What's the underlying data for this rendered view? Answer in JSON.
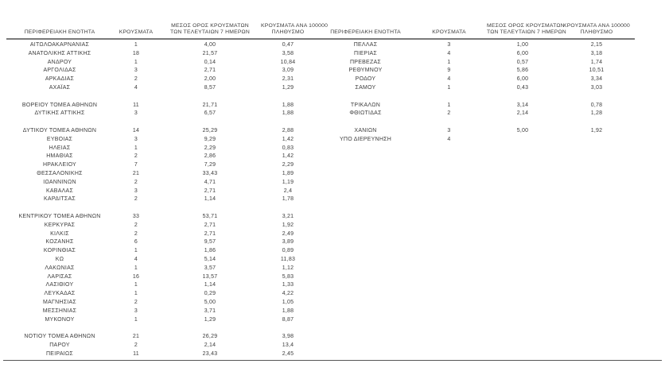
{
  "header": {
    "col_region": "ΠΕΡΙΦΕΡΕΙΑΚΗ ΕΝΟΤΗΤΑ",
    "col_cases": "ΚΡΟΥΣΜΑΤΑ",
    "col_avg7_line1": "ΜΕΣΟΣ ΟΡΟΣ ΚΡΟΥΣΜΑΤΩΝ",
    "col_avg7_line2": "ΤΩΝ ΤΕΛΕΥΤΑΙΩΝ 7 ΗΜΕΡΩΝ",
    "col_per100k_line1": "ΚΡΟΥΣΜΑΤΑ ΑΝΑ 100000",
    "col_per100k_line2": "ΠΛΗΘΥΣΜΟ"
  },
  "colors": {
    "text": "#3d3d3d",
    "header_rule": "#7a7a7a",
    "bottom_rule": "#555555",
    "background": "#ffffff"
  },
  "tables": [
    {
      "rows": [
        [
          "ΑΙΤΩΛΟΑΚΑΡΝΑΝΙΑΣ",
          "1",
          "4,00",
          "0,47"
        ],
        [
          "ΑΝΑΤΟΛΙΚΗΣ ΑΤΤΙΚΗΣ",
          "18",
          "21,57",
          "3,58"
        ],
        [
          "ΑΝΔΡΟΥ",
          "1",
          "0,14",
          "10,84"
        ],
        [
          "ΑΡΓΟΛΙΔΑΣ",
          "3",
          "2,71",
          "3,09"
        ],
        [
          "ΑΡΚΑΔΙΑΣ",
          "2",
          "2,00",
          "2,31"
        ],
        [
          "ΑΧΑΪΑΣ",
          "4",
          "8,57",
          "1,29"
        ],
        null,
        [
          "ΒΟΡΕΙΟΥ ΤΟΜΕΑ ΑΘΗΝΩΝ",
          "11",
          "21,71",
          "1,88"
        ],
        [
          "ΔΥΤΙΚΗΣ ΑΤΤΙΚΗΣ",
          "3",
          "6,57",
          "1,88"
        ],
        null,
        [
          "ΔΥΤΙΚΟΥ ΤΟΜΕΑ ΑΘΗΝΩΝ",
          "14",
          "25,29",
          "2,88"
        ],
        [
          "ΕΥΒΟΙΑΣ",
          "3",
          "9,29",
          "1,42"
        ],
        [
          "ΗΛΕΙΑΣ",
          "1",
          "2,29",
          "0,83"
        ],
        [
          "ΗΜΑΘΙΑΣ",
          "2",
          "2,86",
          "1,42"
        ],
        [
          "ΗΡΑΚΛΕΙΟΥ",
          "7",
          "7,29",
          "2,29"
        ],
        [
          "ΘΕΣΣΑΛΟΝΙΚΗΣ",
          "21",
          "33,43",
          "1,89"
        ],
        [
          "ΙΩΑΝΝΙΝΩΝ",
          "2",
          "4,71",
          "1,19"
        ],
        [
          "ΚΑΒΑΛΑΣ",
          "3",
          "2,71",
          "2,4"
        ],
        [
          "ΚΑΡΔΙΤΣΑΣ",
          "2",
          "1,14",
          "1,78"
        ],
        null,
        [
          "ΚΕΝΤΡΙΚΟΥ ΤΟΜΕΑ ΑΘΗΝΩΝ",
          "33",
          "53,71",
          "3,21"
        ],
        [
          "ΚΕΡΚΥΡΑΣ",
          "2",
          "2,71",
          "1,92"
        ],
        [
          "ΚΙΛΚΙΣ",
          "2",
          "2,71",
          "2,49"
        ],
        [
          "ΚΟΖΑΝΗΣ",
          "6",
          "9,57",
          "3,89"
        ],
        [
          "ΚΟΡΙΝΘΙΑΣ",
          "1",
          "1,86",
          "0,89"
        ],
        [
          "ΚΩ",
          "4",
          "5,14",
          "11,83"
        ],
        [
          "ΛΑΚΩΝΙΑΣ",
          "1",
          "3,57",
          "1,12"
        ],
        [
          "ΛΑΡΙΣΑΣ",
          "16",
          "13,57",
          "5,83"
        ],
        [
          "ΛΑΣΙΘΙΟΥ",
          "1",
          "1,14",
          "1,33"
        ],
        [
          "ΛΕΥΚΑΔΑΣ",
          "1",
          "0,29",
          "4,22"
        ],
        [
          "ΜΑΓΝΗΣΙΑΣ",
          "2",
          "5,00",
          "1,05"
        ],
        [
          "ΜΕΣΣΗΝΙΑΣ",
          "3",
          "3,71",
          "1,88"
        ],
        [
          "ΜΥΚΟΝΟΥ",
          "1",
          "1,29",
          "8,87"
        ],
        null,
        [
          "ΝΟΤΙΟΥ ΤΟΜΕΑ ΑΘΗΝΩΝ",
          "21",
          "26,29",
          "3,98"
        ],
        [
          "ΠΑΡΟΥ",
          "2",
          "2,14",
          "13,4"
        ],
        [
          "ΠΕΙΡΑΙΩΣ",
          "11",
          "23,43",
          "2,45"
        ]
      ]
    },
    {
      "rows": [
        [
          "ΠΕΛΛΑΣ",
          "3",
          "1,00",
          "2,15"
        ],
        [
          "ΠΙΕΡΙΑΣ",
          "4",
          "6,00",
          "3,18"
        ],
        [
          "ΠΡΕΒΕΖΑΣ",
          "1",
          "0,57",
          "1,74"
        ],
        [
          "ΡΕΘΥΜΝΟΥ",
          "9",
          "5,86",
          "10,51"
        ],
        [
          "ΡΟΔΟΥ",
          "4",
          "6,00",
          "3,34"
        ],
        [
          "ΣΑΜΟΥ",
          "1",
          "0,43",
          "3,03"
        ],
        null,
        [
          "ΤΡΙΚΑΛΩΝ",
          "1",
          "3,14",
          "0,78"
        ],
        [
          "ΦΘΙΩΤΙΔΑΣ",
          "2",
          "2,14",
          "1,28"
        ],
        null,
        [
          "ΧΑΝΙΩΝ",
          "3",
          "5,00",
          "1,92"
        ],
        [
          "ΥΠΟ ΔΙΕΡΕΥΝΗΣΗ",
          "4",
          "",
          ""
        ]
      ]
    }
  ]
}
